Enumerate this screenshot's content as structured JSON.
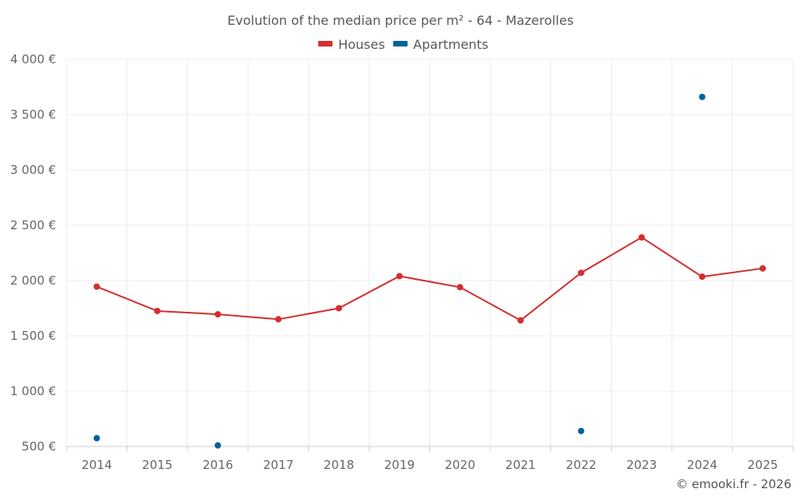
{
  "chart_data": {
    "type": "line",
    "title": "Evolution of the median price per m² - 64 - Mazerolles",
    "categories": [
      "2014",
      "2015",
      "2016",
      "2017",
      "2018",
      "2019",
      "2020",
      "2021",
      "2022",
      "2023",
      "2024",
      "2025"
    ],
    "ylim": [
      500,
      4000
    ],
    "yticks": [
      500,
      1000,
      1500,
      2000,
      2500,
      3000,
      3500,
      4000
    ],
    "ytick_labels": [
      "500 €",
      "1 000 €",
      "1 500 €",
      "2 000 €",
      "2 500 €",
      "3 000 €",
      "3 500 €",
      "4 000 €"
    ],
    "series": [
      {
        "name": "Houses",
        "color": "#d32f2f",
        "values": [
          1945,
          1725,
          1695,
          1650,
          1750,
          2040,
          1940,
          1640,
          2070,
          2390,
          2035,
          2110
        ]
      },
      {
        "name": "Apartments",
        "color": "#00639a",
        "values": [
          575,
          null,
          510,
          null,
          null,
          null,
          null,
          null,
          640,
          null,
          3660,
          null
        ]
      }
    ],
    "grid": true,
    "legend": "top-center",
    "credit": "© emooki.fr - 2026"
  }
}
